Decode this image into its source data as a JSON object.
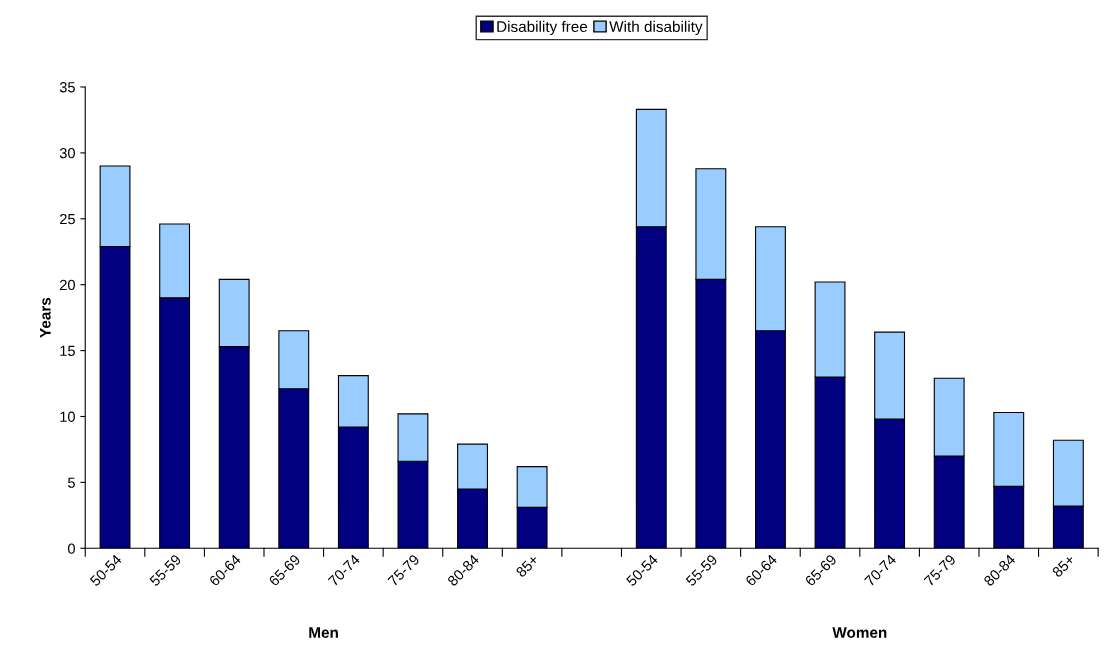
{
  "chart_data": {
    "type": "bar",
    "stacked": true,
    "ylabel": "Years",
    "categories": [
      "50-54",
      "55-59",
      "60-64",
      "65-69",
      "70-74",
      "75-79",
      "80-84",
      "85+",
      null,
      "50-54",
      "55-59",
      "60-64",
      "65-69",
      "70-74",
      "75-79",
      "80-84",
      "85+"
    ],
    "series": [
      {
        "name": "Disability free",
        "color": "#000080",
        "values": [
          22.9,
          19.0,
          15.3,
          12.1,
          9.2,
          6.6,
          4.5,
          3.1,
          null,
          24.4,
          20.4,
          16.5,
          13.0,
          9.8,
          7.0,
          4.7,
          3.2
        ]
      },
      {
        "name": "With disability",
        "color": "#99ccff",
        "values": [
          6.1,
          5.6,
          5.1,
          4.4,
          3.9,
          3.6,
          3.4,
          3.1,
          null,
          8.9,
          8.4,
          7.9,
          7.2,
          6.6,
          5.9,
          5.6,
          5.0
        ]
      }
    ],
    "annotations": [
      "Men",
      "Women"
    ],
    "ylim": [
      0,
      35
    ],
    "yticks": [
      0,
      5,
      10,
      15,
      20,
      25,
      30,
      35
    ],
    "legend": "top",
    "grid": false
  }
}
